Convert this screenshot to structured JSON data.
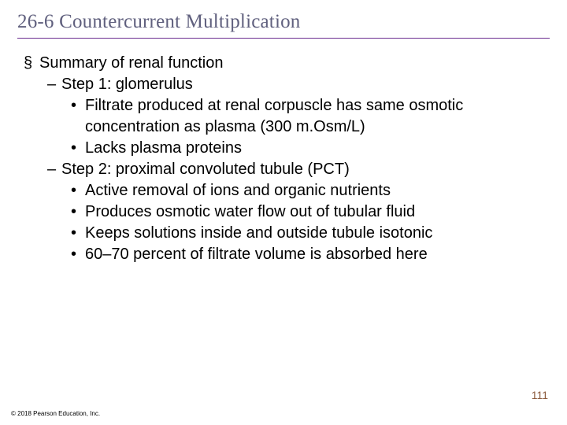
{
  "slide": {
    "title": "26-6 Countercurrent Multiplication",
    "title_color": "#60607e",
    "title_underline_color": "#6b2c8f",
    "title_font_family": "Times New Roman",
    "title_fontsize": 25,
    "body_fontsize": 20,
    "body_color": "#000000",
    "background_color": "#ffffff",
    "bullets": {
      "l1_marker": "§",
      "l2_marker": "–",
      "l3_marker": "•"
    },
    "content": [
      {
        "level": 1,
        "text": "Summary of renal function"
      },
      {
        "level": 2,
        "text": "Step 1: glomerulus"
      },
      {
        "level": 3,
        "text": "Filtrate produced at renal corpuscle has same osmotic concentration as plasma (300 m.Osm/L)"
      },
      {
        "level": 3,
        "text": "Lacks plasma proteins"
      },
      {
        "level": 2,
        "text": "Step 2: proximal convoluted tubule (PCT)"
      },
      {
        "level": 3,
        "text": "Active removal of ions and organic nutrients"
      },
      {
        "level": 3,
        "text": "Produces osmotic water flow out of tubular fluid"
      },
      {
        "level": 3,
        "text": "Keeps solutions inside and outside tubule isotonic"
      },
      {
        "level": 3,
        "text": "60–70 percent of filtrate volume is absorbed here"
      }
    ],
    "page_number": "111",
    "page_number_color": "#8b5a3c",
    "copyright": "© 2018 Pearson Education, Inc."
  }
}
